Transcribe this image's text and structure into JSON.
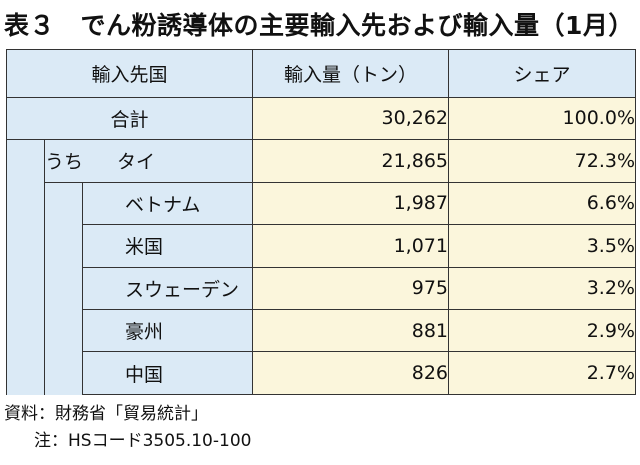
{
  "title": "表３　でん粉誘導体の主要輸入先および輸入量（1月）",
  "table": {
    "headers": [
      "輸入先国",
      "輸入量（トン）",
      "シェア"
    ],
    "total": {
      "name": "合計",
      "volume": "30,262",
      "share": "100.0%"
    },
    "first": {
      "prefix": "うち",
      "name": "タイ",
      "volume": "21,865",
      "share": "72.3%"
    },
    "rows": [
      {
        "name": "ベトナム",
        "volume": "1,987",
        "share": "6.6%"
      },
      {
        "name": "米国",
        "volume": "1,071",
        "share": "3.5%"
      },
      {
        "name": "スウェーデン",
        "volume": "975",
        "share": "3.2%"
      },
      {
        "name": "豪州",
        "volume": "881",
        "share": "2.9%"
      },
      {
        "name": "中国",
        "volume": "826",
        "share": "2.7%"
      }
    ]
  },
  "notes": {
    "source": "資料：財務省「貿易統計」",
    "note": "注：HSコード3505.10-100"
  }
}
